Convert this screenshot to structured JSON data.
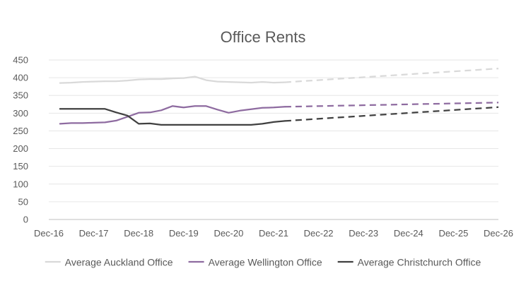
{
  "chart_data": {
    "type": "line",
    "title": "Office Rents",
    "xlabel": "",
    "ylabel": "",
    "ylim": [
      0,
      450
    ],
    "yticks": [
      0,
      50,
      100,
      150,
      200,
      250,
      300,
      350,
      400,
      450
    ],
    "xlim": [
      "Dec-16",
      "Dec-26"
    ],
    "xticks": [
      "Dec-16",
      "Dec-17",
      "Dec-18",
      "Dec-19",
      "Dec-20",
      "Dec-21",
      "Dec-22",
      "Dec-23",
      "Dec-24",
      "Dec-25",
      "Dec-26"
    ],
    "grid": "horizontal",
    "legend_position": "bottom",
    "series": [
      {
        "name": "Average Auckland Office",
        "color": "#d9d9d9",
        "style": "solid",
        "x": [
          "Mar-17",
          "Jun-17",
          "Sep-17",
          "Dec-17",
          "Mar-18",
          "Jun-18",
          "Sep-18",
          "Dec-18",
          "Mar-19",
          "Jun-19",
          "Sep-19",
          "Dec-19",
          "Mar-20",
          "Jun-20",
          "Sep-20",
          "Dec-20",
          "Mar-21",
          "Jun-21",
          "Sep-21",
          "Dec-21",
          "Mar-22"
        ],
        "values": [
          385,
          386,
          388,
          389,
          390,
          390,
          392,
          395,
          396,
          396,
          398,
          399,
          403,
          393,
          389,
          388,
          387,
          386,
          388,
          386,
          387
        ]
      },
      {
        "name": "Average Auckland Office (forecast)",
        "color": "#d9d9d9",
        "style": "dashed",
        "x": [
          "Mar-22",
          "Dec-26"
        ],
        "values": [
          387,
          426
        ]
      },
      {
        "name": "Average Wellington Office",
        "color": "#8e6ba0",
        "style": "solid",
        "x": [
          "Mar-17",
          "Jun-17",
          "Sep-17",
          "Dec-17",
          "Mar-18",
          "Jun-18",
          "Sep-18",
          "Dec-18",
          "Mar-19",
          "Jun-19",
          "Sep-19",
          "Dec-19",
          "Mar-20",
          "Jun-20",
          "Sep-20",
          "Dec-20",
          "Mar-21",
          "Jun-21",
          "Sep-21",
          "Dec-21",
          "Mar-22"
        ],
        "values": [
          270,
          272,
          272,
          273,
          274,
          279,
          290,
          301,
          302,
          308,
          320,
          316,
          320,
          320,
          310,
          301,
          307,
          311,
          315,
          316,
          318
        ]
      },
      {
        "name": "Average Wellington Office (forecast)",
        "color": "#8e6ba0",
        "style": "dashed",
        "x": [
          "Mar-22",
          "Dec-26"
        ],
        "values": [
          318,
          330
        ]
      },
      {
        "name": "Average Christchurch Office",
        "color": "#404040",
        "style": "solid",
        "x": [
          "Mar-17",
          "Jun-17",
          "Sep-17",
          "Dec-17",
          "Mar-18",
          "Jun-18",
          "Sep-18",
          "Dec-18",
          "Mar-19",
          "Jun-19",
          "Sep-19",
          "Dec-19",
          "Mar-20",
          "Jun-20",
          "Sep-20",
          "Dec-20",
          "Mar-21",
          "Jun-21",
          "Sep-21",
          "Dec-21",
          "Mar-22"
        ],
        "values": [
          312,
          312,
          312,
          312,
          312,
          302,
          293,
          270,
          271,
          267,
          267,
          267,
          267,
          267,
          267,
          267,
          267,
          267,
          270,
          275,
          278
        ]
      },
      {
        "name": "Average Christchurch Office (forecast)",
        "color": "#404040",
        "style": "dashed",
        "x": [
          "Mar-22",
          "Dec-26"
        ],
        "values": [
          278,
          317
        ]
      }
    ],
    "legend": [
      {
        "label": "Average Auckland Office",
        "color": "#d9d9d9"
      },
      {
        "label": "Average Wellington Office",
        "color": "#8e6ba0"
      },
      {
        "label": "Average Christchurch Office",
        "color": "#404040"
      }
    ]
  }
}
